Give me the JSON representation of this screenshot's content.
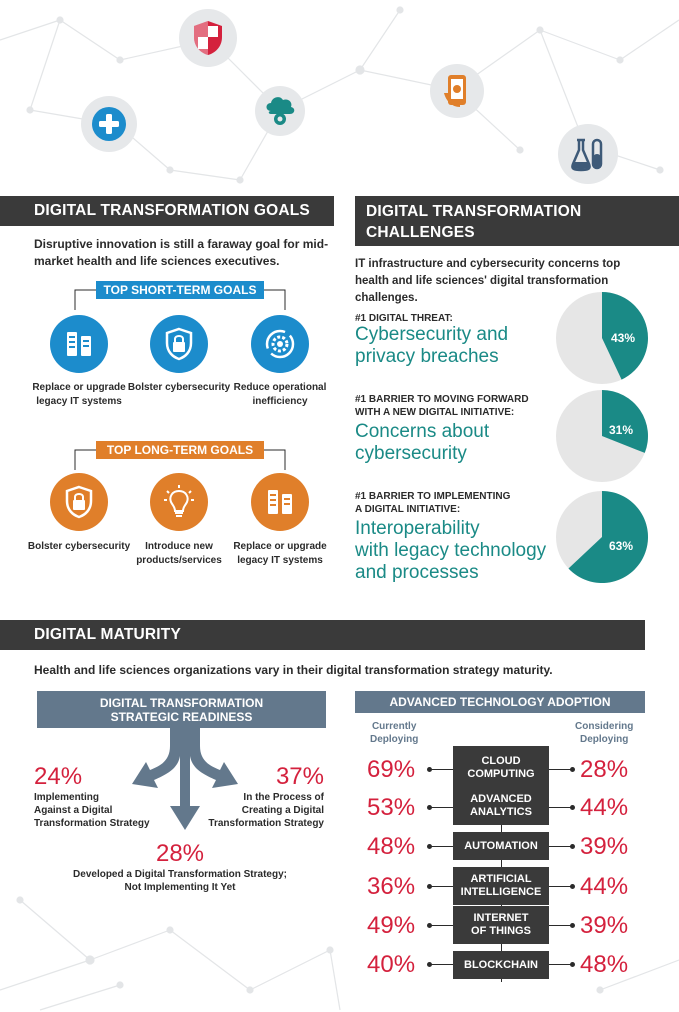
{
  "goals": {
    "title": "DIGITAL TRANSFORMATION GOALS",
    "intro": "Disruptive innovation is still a faraway goal for mid-market health and life sciences executives.",
    "short_term_title": "TOP SHORT-TERM GOALS",
    "short_term": [
      {
        "label": "Replace or upgrade legacy IT systems",
        "icon": "server-icon"
      },
      {
        "label": "Bolster cybersecurity",
        "icon": "lock-shield-icon"
      },
      {
        "label": "Reduce operational inefficiency",
        "icon": "gear-cycle-icon"
      }
    ],
    "long_term_title": "TOP LONG-TERM GOALS",
    "long_term": [
      {
        "label": "Bolster cybersecurity",
        "icon": "lock-shield-icon"
      },
      {
        "label": "Introduce new products/services",
        "icon": "lightbulb-icon"
      },
      {
        "label": "Replace or upgrade legacy IT systems",
        "icon": "server-icon"
      }
    ],
    "blue": "#1c8ccc",
    "orange": "#e07f2a"
  },
  "challenges": {
    "title_line1": "DIGITAL TRANSFORMATION",
    "title_line2": "CHALLENGES",
    "intro": "IT infrastructure and cybersecurity concerns top health and life sciences' digital transformation challenges.",
    "items": [
      {
        "label_line1": "#1 DIGITAL THREAT:",
        "label_line2": "",
        "text_lines": [
          "Cybersecurity and",
          "privacy breaches"
        ],
        "percent_text": "43%",
        "percent": 43
      },
      {
        "label_line1": "#1 BARRIER TO MOVING FORWARD",
        "label_line2": "WITH A NEW DIGITAL INITIATIVE:",
        "text_lines": [
          "Concerns about",
          "cybersecurity"
        ],
        "percent_text": "31%",
        "percent": 31
      },
      {
        "label_line1": "#1 BARRIER TO IMPLEMENTING",
        "label_line2": "A DIGITAL INITIATIVE:",
        "text_lines": [
          "Interoperability",
          "with legacy technology",
          "and processes"
        ],
        "percent_text": "63%",
        "percent": 63
      }
    ],
    "teal": "#1a8a86",
    "grey": "#e6e6e6"
  },
  "maturity": {
    "title": "DIGITAL MATURITY",
    "intro": "Health and life sciences organizations vary in their digital transformation strategy maturity.",
    "readiness": {
      "title_line1": "DIGITAL TRANSFORMATION",
      "title_line2": "STRATEGIC READINESS",
      "left": {
        "pct": "24%",
        "lines": [
          "Implementing",
          "Against a Digital",
          "Transformation Strategy"
        ]
      },
      "right": {
        "pct": "37%",
        "lines": [
          "In the Process of",
          "Creating a Digital",
          "Transformation Strategy"
        ]
      },
      "bottom": {
        "pct": "28%",
        "lines": [
          "Developed a Digital Transformation Strategy;",
          "Not Implementing It Yet"
        ]
      }
    },
    "adoption": {
      "title": "ADVANCED TECHNOLOGY ADOPTION",
      "col_left": [
        "Currently",
        "Deploying"
      ],
      "col_right": [
        "Considering",
        "Deploying"
      ],
      "rows": [
        {
          "lines": [
            "CLOUD",
            "COMPUTING"
          ],
          "current": "69%",
          "considering": "28%"
        },
        {
          "lines": [
            "ADVANCED",
            "ANALYTICS"
          ],
          "current": "53%",
          "considering": "44%"
        },
        {
          "lines": [
            "AUTOMATION"
          ],
          "current": "48%",
          "considering": "39%"
        },
        {
          "lines": [
            "ARTIFICIAL",
            "INTELLIGENCE"
          ],
          "current": "36%",
          "considering": "44%"
        },
        {
          "lines": [
            "INTERNET",
            "OF THINGS"
          ],
          "current": "49%",
          "considering": "39%"
        },
        {
          "lines": [
            "BLOCKCHAIN"
          ],
          "current": "40%",
          "considering": "48%"
        }
      ]
    }
  },
  "header_icons": [
    "shield-icon",
    "plus-icon",
    "cloud-gear-icon",
    "mobile-payment-icon",
    "test-tubes-icon"
  ]
}
